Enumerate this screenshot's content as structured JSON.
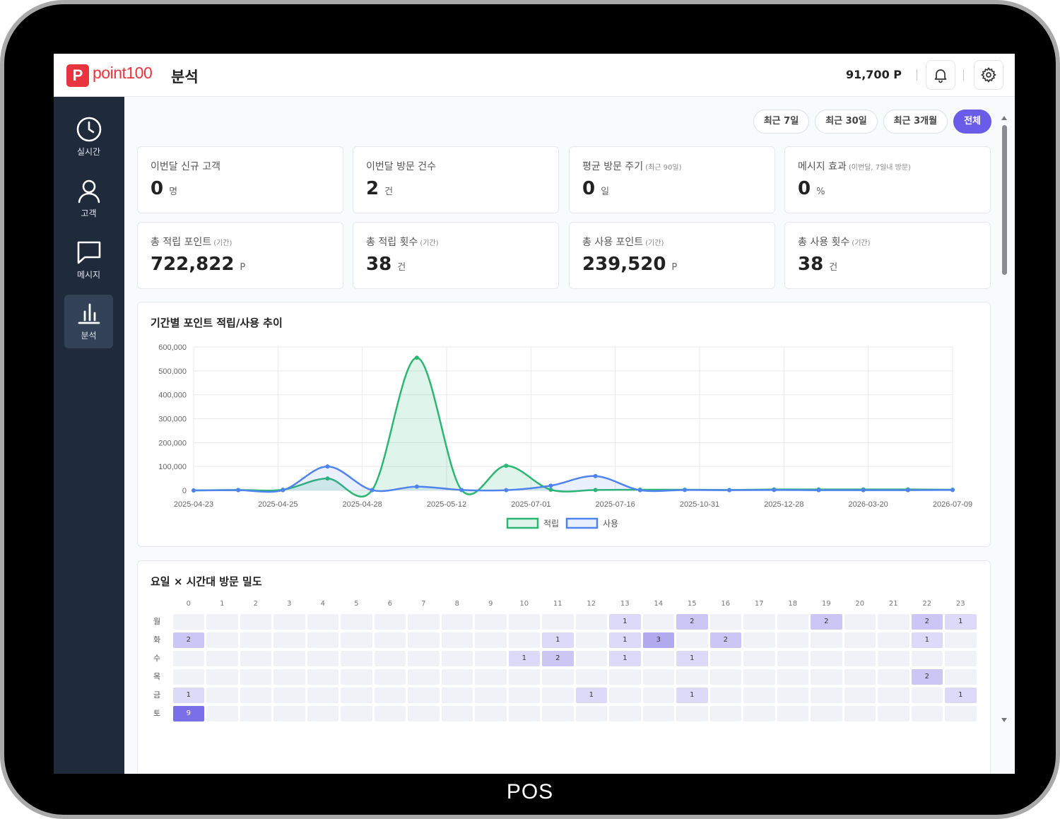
{
  "device": {
    "label": "POS"
  },
  "header": {
    "logo_mark": "P",
    "logo_text": "point100",
    "title": "분석",
    "points": "91,700 P",
    "bell_icon": "bell-icon",
    "settings_icon": "gear-icon"
  },
  "sidebar": {
    "items": [
      {
        "label": "실시간",
        "icon": "clock-icon",
        "active": false
      },
      {
        "label": "고객",
        "icon": "user-icon",
        "active": false
      },
      {
        "label": "메시지",
        "icon": "message-icon",
        "active": false
      },
      {
        "label": "분석",
        "icon": "bar-chart-icon",
        "active": true
      }
    ]
  },
  "filters": [
    {
      "label": "최근 7일",
      "active": false
    },
    {
      "label": "최근 30일",
      "active": false
    },
    {
      "label": "최근 3개월",
      "active": false
    },
    {
      "label": "전체",
      "active": true
    }
  ],
  "stats": [
    {
      "title": "이번달 신규 고객",
      "sub": "",
      "value": "0",
      "unit": "명"
    },
    {
      "title": "이번달 방문 건수",
      "sub": "",
      "value": "2",
      "unit": "건"
    },
    {
      "title": "평균 방문 주기",
      "sub": "(최근 90일)",
      "value": "0",
      "unit": "일"
    },
    {
      "title": "메시지 효과",
      "sub": "(이번달, 7일내 방문)",
      "value": "0",
      "unit": "%"
    },
    {
      "title": "총 적립 포인트",
      "sub": "(기간)",
      "value": "722,822",
      "unit": "P"
    },
    {
      "title": "총 적립 횟수",
      "sub": "(기간)",
      "value": "38",
      "unit": "건"
    },
    {
      "title": "총 사용 포인트",
      "sub": "(기간)",
      "value": "239,520",
      "unit": "P"
    },
    {
      "title": "총 사용 횟수",
      "sub": "(기간)",
      "value": "38",
      "unit": "건"
    }
  ],
  "trend": {
    "title": "기간별 포인트 적립/사용 추이"
  },
  "chart_data": {
    "type": "area",
    "title": "기간별 포인트 적립/사용 추이",
    "ylim": [
      0,
      600000
    ],
    "yticks": [
      0,
      100000,
      200000,
      300000,
      400000,
      500000,
      600000
    ],
    "ytick_labels": [
      "0",
      "100,000",
      "200,000",
      "300,000",
      "400,000",
      "500,000",
      "600,000"
    ],
    "x_tick_labels": [
      "2025-04-23",
      "2025-04-25",
      "2025-04-28",
      "2025-05-12",
      "2025-07-01",
      "2025-07-16",
      "2025-10-31",
      "2025-12-28",
      "2026-03-20",
      "2026-07-09"
    ],
    "grid": true,
    "legend": "bottom",
    "series": [
      {
        "name": "적립",
        "color": "#2bb673",
        "values": [
          0,
          2000,
          3000,
          50000,
          2000,
          555000,
          2000,
          103000,
          3000,
          2000,
          3000,
          3000,
          2000,
          4000,
          4000,
          4000,
          4000,
          3000
        ]
      },
      {
        "name": "사용",
        "color": "#4f83f0",
        "values": [
          0,
          1000,
          1000,
          100000,
          1000,
          16000,
          2000,
          1000,
          20000,
          60000,
          1000,
          2000,
          1000,
          2000,
          1000,
          1000,
          1000,
          2000
        ]
      }
    ]
  },
  "heatmap": {
    "title": "요일 × 시간대 방문 밀도",
    "hours": [
      "0",
      "1",
      "2",
      "3",
      "4",
      "5",
      "6",
      "7",
      "8",
      "9",
      "10",
      "11",
      "12",
      "13",
      "14",
      "15",
      "16",
      "17",
      "18",
      "19",
      "20",
      "21",
      "22",
      "23"
    ],
    "days": [
      "월",
      "화",
      "수",
      "목",
      "금",
      "토"
    ],
    "values": [
      [
        0,
        0,
        0,
        0,
        0,
        0,
        0,
        0,
        0,
        0,
        0,
        0,
        0,
        1,
        0,
        2,
        0,
        0,
        0,
        2,
        0,
        0,
        2,
        1
      ],
      [
        2,
        0,
        0,
        0,
        0,
        0,
        0,
        0,
        0,
        0,
        0,
        1,
        0,
        1,
        3,
        0,
        2,
        0,
        0,
        0,
        0,
        0,
        1,
        0
      ],
      [
        0,
        0,
        0,
        0,
        0,
        0,
        0,
        0,
        0,
        0,
        1,
        2,
        0,
        1,
        0,
        1,
        0,
        0,
        0,
        0,
        0,
        0,
        0,
        0
      ],
      [
        0,
        0,
        0,
        0,
        0,
        0,
        0,
        0,
        0,
        0,
        0,
        0,
        0,
        0,
        0,
        0,
        0,
        0,
        0,
        0,
        0,
        0,
        2,
        0
      ],
      [
        1,
        0,
        0,
        0,
        0,
        0,
        0,
        0,
        0,
        0,
        0,
        0,
        1,
        0,
        0,
        1,
        0,
        0,
        0,
        0,
        0,
        0,
        0,
        1
      ],
      [
        9,
        0,
        0,
        0,
        0,
        0,
        0,
        0,
        0,
        0,
        0,
        0,
        0,
        0,
        0,
        0,
        0,
        0,
        0,
        0,
        0,
        0,
        0,
        0
      ]
    ]
  }
}
